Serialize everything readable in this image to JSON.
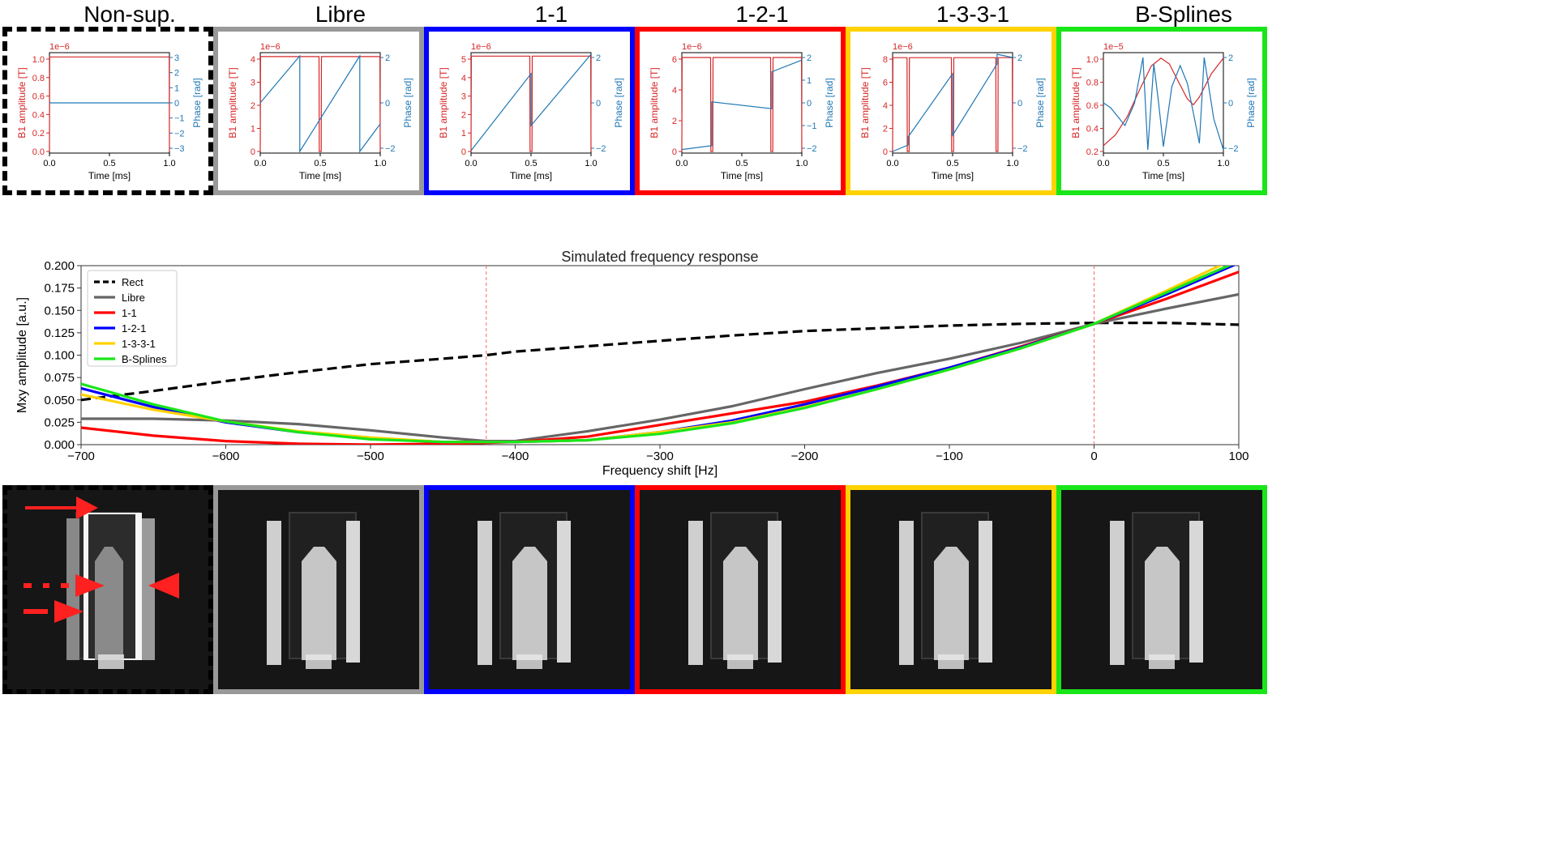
{
  "column_titles": [
    "Non-sup.",
    "Libre",
    "1-1",
    "1-2-1",
    "1-3-3-1",
    "B-Splines"
  ],
  "frame_colors": [
    "#000000",
    "#999999",
    "#0000ff",
    "#ff0000",
    "#ffd200",
    "#19e619"
  ],
  "frame_styles": [
    "dashed",
    "solid",
    "solid",
    "solid",
    "solid",
    "solid"
  ],
  "small_plot_labels": {
    "ylabel_left": "B1 amplitude [T]",
    "ylabel_right": "Phase [rad]",
    "xlabel": "Time [ms]",
    "amp_color": "#d62728",
    "phase_color": "#1f77b4"
  },
  "main_chart": {
    "title": "Simulated frequency response",
    "xlabel": "Frequency shift [Hz]",
    "ylabel": "Mxy amplitude [a.u.]"
  },
  "chart_data": [
    {
      "type": "line",
      "panel": "Non-sup.",
      "exponent_label": "1e−6",
      "xlim": [
        0,
        1
      ],
      "xticks": [
        "0.0",
        "0.5",
        "1.0"
      ],
      "ylim_left": [
        0,
        1.1e-06
      ],
      "yticks_left": [
        "0.0",
        "0.2",
        "0.4",
        "0.6",
        "0.8",
        "1.0"
      ],
      "ylim_right": [
        -3,
        3
      ],
      "yticks_right": [
        "−3",
        "−2",
        "−1",
        "0",
        "1",
        "2",
        "3"
      ],
      "series": [
        {
          "axis": "left",
          "x": [
            0,
            0.002,
            0.998,
            1.0
          ],
          "y": [
            0,
            1.07e-06,
            1.07e-06,
            0
          ]
        },
        {
          "axis": "right",
          "x": [
            0,
            1
          ],
          "y": [
            0,
            0
          ]
        }
      ]
    },
    {
      "type": "line",
      "panel": "Libre",
      "exponent_label": "1e−6",
      "xlim": [
        0,
        1
      ],
      "xticks": [
        "0.0",
        "0.5",
        "1.0"
      ],
      "ylim_left": [
        0,
        4.2e-06
      ],
      "yticks_left": [
        "0",
        "1",
        "2",
        "3",
        "4"
      ],
      "ylim_right": [
        -3,
        3
      ],
      "yticks_right": [
        "−2",
        "0",
        "2"
      ],
      "series": [
        {
          "axis": "left",
          "x": [
            0,
            0.003,
            0.49,
            0.492,
            0.508,
            0.51,
            0.997,
            1.0
          ],
          "y": [
            0,
            4.1e-06,
            4.1e-06,
            0,
            0,
            4.1e-06,
            4.1e-06,
            0
          ]
        },
        {
          "axis": "right",
          "x": [
            0,
            0.33,
            0.33,
            0.83,
            0.83,
            1.0
          ],
          "y": [
            0,
            2.9,
            -3,
            2.9,
            -3,
            -1.3
          ]
        }
      ]
    },
    {
      "type": "line",
      "panel": "1-1",
      "exponent_label": "1e−6",
      "xlim": [
        0,
        1
      ],
      "xticks": [
        "0.0",
        "0.5",
        "1.0"
      ],
      "ylim_left": [
        0,
        5.2e-06
      ],
      "yticks_left": [
        "0",
        "1",
        "2",
        "3",
        "4",
        "5"
      ],
      "ylim_right": [
        -3,
        3
      ],
      "yticks_right": [
        "−2",
        "0",
        "2"
      ],
      "series": [
        {
          "axis": "left",
          "x": [
            0,
            0.003,
            0.49,
            0.492,
            0.508,
            0.51,
            0.997,
            1.0
          ],
          "y": [
            0,
            5.1e-06,
            5.1e-06,
            0,
            0,
            5.1e-06,
            5.1e-06,
            0
          ]
        },
        {
          "axis": "right",
          "x": [
            0,
            0.5,
            0.5,
            1.0
          ],
          "y": [
            -2.95,
            1.8,
            -1.4,
            3.0
          ]
        }
      ]
    },
    {
      "type": "line",
      "panel": "1-2-1",
      "exponent_label": "1e−6",
      "xlim": [
        0,
        1
      ],
      "xticks": [
        "0.0",
        "0.5",
        "1.0"
      ],
      "ylim_left": [
        0,
        6e-06
      ],
      "yticks_left": [
        "0",
        "2",
        "4",
        "6"
      ],
      "ylim_right": [
        -2.5,
        2.5
      ],
      "yticks_right": [
        "−2",
        "−1",
        "0",
        "1",
        "2"
      ],
      "series": [
        {
          "axis": "left",
          "x": [
            0,
            0.003,
            0.24,
            0.242,
            0.258,
            0.26,
            0.74,
            0.742,
            0.758,
            0.76,
            0.997,
            1.0
          ],
          "y": [
            0,
            5.8e-06,
            5.8e-06,
            0,
            0,
            5.8e-06,
            5.8e-06,
            0,
            0,
            5.8e-06,
            5.8e-06,
            0
          ]
        },
        {
          "axis": "right",
          "x": [
            0,
            0.25,
            0.25,
            0.75,
            0.75,
            1.0
          ],
          "y": [
            -2.4,
            -2.2,
            0.05,
            -0.3,
            1.6,
            2.2
          ]
        }
      ]
    },
    {
      "type": "line",
      "panel": "1-3-3-1",
      "exponent_label": "1e−6",
      "xlim": [
        0,
        1
      ],
      "xticks": [
        "0.0",
        "0.5",
        "1.0"
      ],
      "ylim_left": [
        0,
        8.5e-06
      ],
      "yticks_left": [
        "0",
        "2",
        "4",
        "6",
        "8"
      ],
      "ylim_right": [
        -3,
        3
      ],
      "yticks_right": [
        "−2",
        "0",
        "2"
      ],
      "series": [
        {
          "axis": "left",
          "x": [
            0,
            0.003,
            0.12,
            0.122,
            0.138,
            0.14,
            0.49,
            0.492,
            0.508,
            0.51,
            0.86,
            0.862,
            0.878,
            0.88,
            0.997,
            1.0
          ],
          "y": [
            0,
            8.2e-06,
            8.2e-06,
            0,
            0,
            8.2e-06,
            8.2e-06,
            0,
            0,
            8.2e-06,
            8.2e-06,
            0,
            0,
            8.2e-06,
            8.2e-06,
            0
          ]
        },
        {
          "axis": "right",
          "x": [
            0,
            0.13,
            0.13,
            0.5,
            0.5,
            0.87,
            0.87,
            1.0
          ],
          "y": [
            -3,
            -2.6,
            -2.1,
            1.8,
            -2.0,
            2.4,
            3.0,
            2.8
          ]
        }
      ]
    },
    {
      "type": "line",
      "panel": "B-Splines",
      "exponent_label": "1e−5",
      "xlim": [
        0,
        1
      ],
      "xticks": [
        "0.0",
        "0.5",
        "1.0"
      ],
      "ylim_left": [
        0,
        1e-05
      ],
      "yticks_left": [
        "0.2",
        "0.4",
        "0.6",
        "0.8",
        "1.0"
      ],
      "ylim_right": [
        -3,
        3
      ],
      "yticks_right": [
        "−2",
        "0",
        "2"
      ],
      "series": [
        {
          "axis": "left",
          "x": [
            0,
            0.1,
            0.2,
            0.3,
            0.4,
            0.48,
            0.55,
            0.62,
            0.7,
            0.75,
            0.8,
            0.9,
            1.0
          ],
          "y": [
            6e-07,
            1.7e-06,
            3.6e-06,
            6.3e-06,
            8.8e-06,
            9.6e-06,
            9e-06,
            7.3e-06,
            5.4e-06,
            4.8e-06,
            5.6e-06,
            8e-06,
            9.6e-06
          ]
        },
        {
          "axis": "right",
          "x": [
            0,
            0.06,
            0.18,
            0.26,
            0.33,
            0.37,
            0.42,
            0.46,
            0.5,
            0.57,
            0.64,
            0.7,
            0.76,
            0.8,
            0.84,
            0.92,
            1.0
          ],
          "y": [
            0,
            -0.3,
            -1.4,
            0,
            2.8,
            -2.9,
            2.4,
            0,
            -2.7,
            1.0,
            2.3,
            1.2,
            -1.0,
            -2.5,
            2.8,
            -1.0,
            -2.9
          ]
        }
      ]
    },
    {
      "type": "line",
      "panel": "main",
      "title": "Simulated frequency response",
      "xlabel": "Frequency shift [Hz]",
      "ylabel": "Mxy amplitude [a.u.]",
      "xlim": [
        -700,
        100
      ],
      "ylim": [
        0,
        0.2
      ],
      "xticks": [
        -700,
        -600,
        -500,
        -400,
        -300,
        -200,
        -100,
        0,
        100
      ],
      "xtick_labels": [
        "−700",
        "−600",
        "−500",
        "−400",
        "−300",
        "−200",
        "−100",
        "0",
        "100"
      ],
      "yticks": [
        0,
        0.025,
        0.05,
        0.075,
        0.1,
        0.125,
        0.15,
        0.175,
        0.2
      ],
      "ytick_labels": [
        "0.000",
        "0.025",
        "0.050",
        "0.075",
        "0.100",
        "0.125",
        "0.150",
        "0.175",
        "0.200"
      ],
      "vlines": [
        -420,
        0
      ],
      "vline_color": "#ff6666",
      "grid": false,
      "legend_position": "top-left",
      "x": [
        -700,
        -650,
        -600,
        -550,
        -500,
        -450,
        -420,
        -400,
        -350,
        -300,
        -250,
        -200,
        -150,
        -100,
        -50,
        0,
        50,
        100
      ],
      "series": [
        {
          "name": "Rect",
          "color": "#000000",
          "style": "dashed",
          "values": [
            0.05,
            0.06,
            0.071,
            0.081,
            0.09,
            0.096,
            0.1,
            0.104,
            0.11,
            0.116,
            0.122,
            0.127,
            0.13,
            0.133,
            0.135,
            0.136,
            0.136,
            0.134
          ]
        },
        {
          "name": "Libre",
          "color": "#666666",
          "style": "solid",
          "values": [
            0.029,
            0.029,
            0.027,
            0.023,
            0.016,
            0.008,
            0.004,
            0.004,
            0.015,
            0.028,
            0.043,
            0.062,
            0.08,
            0.096,
            0.114,
            0.135,
            0.152,
            0.168
          ]
        },
        {
          "name": "1-1",
          "color": "#ff0000",
          "style": "solid",
          "values": [
            0.019,
            0.01,
            0.004,
            0.001,
            0.0,
            0.001,
            0.002,
            0.003,
            0.009,
            0.022,
            0.035,
            0.048,
            0.066,
            0.086,
            0.11,
            0.135,
            0.163,
            0.193
          ]
        },
        {
          "name": "1-2-1",
          "color": "#0000ff",
          "style": "solid",
          "values": [
            0.063,
            0.042,
            0.025,
            0.014,
            0.007,
            0.003,
            0.003,
            0.003,
            0.005,
            0.014,
            0.027,
            0.045,
            0.065,
            0.086,
            0.109,
            0.135,
            0.168,
            0.203
          ]
        },
        {
          "name": "1-3-3-1",
          "color": "#ffd200",
          "style": "solid",
          "values": [
            0.056,
            0.039,
            0.026,
            0.015,
            0.008,
            0.003,
            0.003,
            0.003,
            0.005,
            0.014,
            0.025,
            0.042,
            0.062,
            0.084,
            0.108,
            0.135,
            0.172,
            0.21
          ]
        },
        {
          "name": "B-Splines",
          "color": "#19e619",
          "style": "solid",
          "values": [
            0.068,
            0.045,
            0.026,
            0.014,
            0.006,
            0.003,
            0.003,
            0.003,
            0.005,
            0.012,
            0.024,
            0.041,
            0.062,
            0.084,
            0.108,
            0.135,
            0.17,
            0.205
          ]
        }
      ]
    }
  ]
}
